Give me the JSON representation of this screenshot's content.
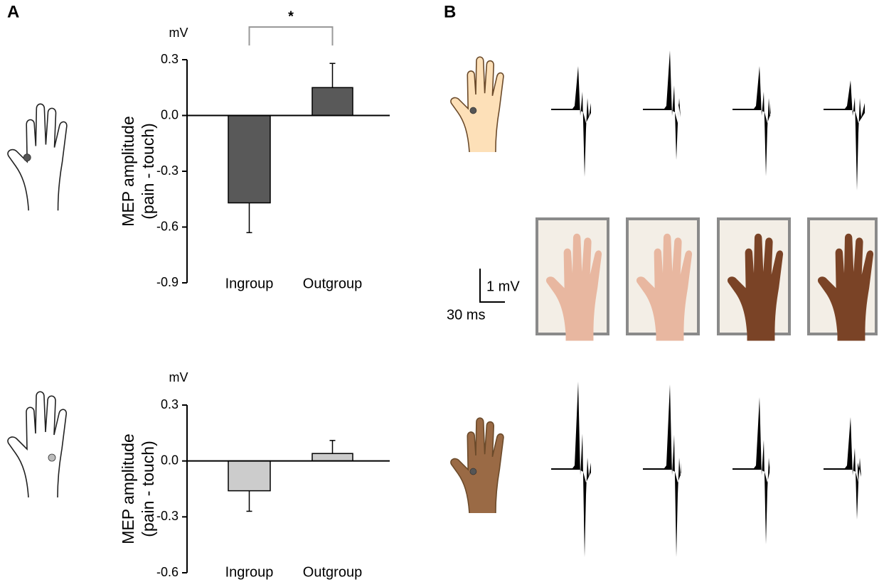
{
  "panel_labels": [
    "A",
    "B"
  ],
  "chart_data": [
    {
      "type": "bar",
      "unit": "mV",
      "y_label": [
        "MEP amplitude",
        "(pain - touch)"
      ],
      "categories": [
        "Ingroup",
        "Outgroup"
      ],
      "values": [
        -0.47,
        0.15
      ],
      "errors": [
        0.16,
        0.13
      ],
      "color": "#595959",
      "ylim": [
        -0.9,
        0.3
      ],
      "yticks": [
        -0.9,
        -0.6,
        -0.3,
        {
          "value": 0,
          "label": "0.0"
        },
        0.3
      ],
      "annotation": "*"
    },
    {
      "type": "bar",
      "unit": "mV",
      "y_label": [
        "MEP amplitude",
        "(pain - touch)"
      ],
      "categories": [
        "Ingroup",
        "Outgroup"
      ],
      "values": [
        -0.16,
        0.04
      ],
      "errors": [
        0.11,
        0.07
      ],
      "color": "#cccccc",
      "ylim": [
        -0.6,
        0.3
      ],
      "yticks": [
        -0.6,
        -0.3,
        {
          "value": 0,
          "label": "0.0"
        },
        0.3
      ]
    }
  ],
  "scale_bar": {
    "amplitude": "1 mV",
    "time": "30 ms"
  }
}
